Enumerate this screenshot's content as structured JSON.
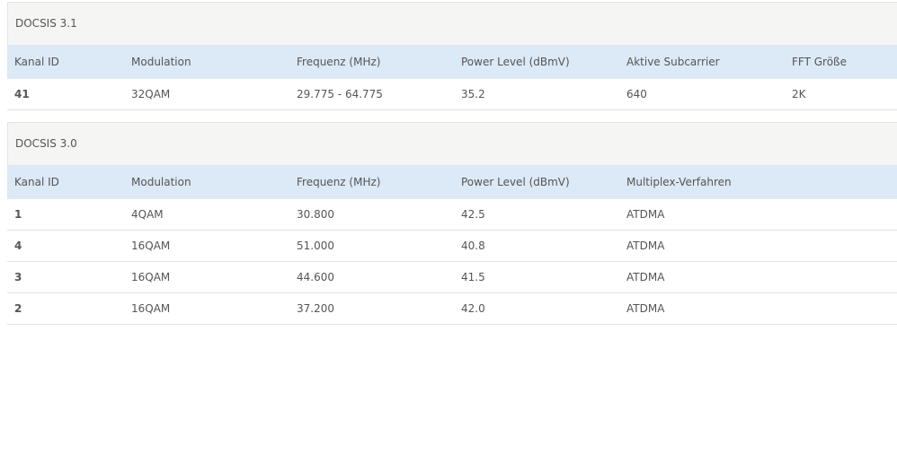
{
  "sections": [
    {
      "title": "DOCSIS 3.1",
      "columns": [
        "Kanal ID",
        "Modulation",
        "Frequenz (MHz)",
        "Power Level (dBmV)",
        "Aktive Subcarrier",
        "FFT Größe"
      ],
      "rows": [
        [
          "41",
          "32QAM",
          "29.775 - 64.775",
          "35.2",
          "640",
          "2K"
        ]
      ]
    },
    {
      "title": "DOCSIS 3.0",
      "columns": [
        "Kanal ID",
        "Modulation",
        "Frequenz (MHz)",
        "Power Level (dBmV)",
        "Multiplex-Verfahren"
      ],
      "rows": [
        [
          "1",
          "4QAM",
          "30.800",
          "42.5",
          "ATDMA"
        ],
        [
          "4",
          "16QAM",
          "51.000",
          "40.8",
          "ATDMA"
        ],
        [
          "3",
          "16QAM",
          "44.600",
          "41.5",
          "ATDMA"
        ],
        [
          "2",
          "16QAM",
          "37.200",
          "42.0",
          "ATDMA"
        ]
      ]
    }
  ]
}
